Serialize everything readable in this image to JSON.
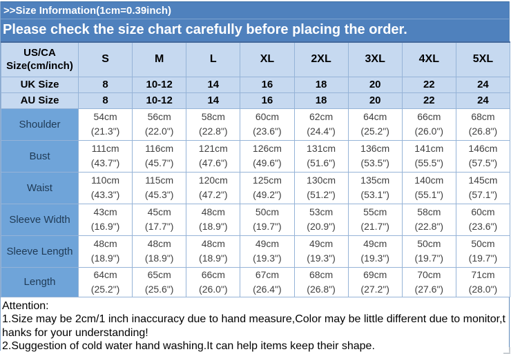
{
  "header": {
    "title": ">>Size Information(1cm=0.39inch)",
    "banner": "Please check the size chart carefully before placing the order."
  },
  "size_table": {
    "corner_header": {
      "line1": "US/CA",
      "line2": "Size(cm/inch)"
    },
    "size_headers": [
      "S",
      "M",
      "L",
      "XL",
      "2XL",
      "3XL",
      "4XL",
      "5XL"
    ],
    "uk_row": {
      "label": "UK Size",
      "values": [
        "8",
        "10-12",
        "14",
        "16",
        "18",
        "20",
        "22",
        "24"
      ]
    },
    "au_row": {
      "label": "AU Size",
      "values": [
        "8",
        "10-12",
        "14",
        "16",
        "18",
        "20",
        "22",
        "24"
      ]
    },
    "measurements": [
      {
        "label": "Shoulder",
        "cm": [
          "54cm",
          "56cm",
          "58cm",
          "60cm",
          "62cm",
          "64cm",
          "66cm",
          "68cm"
        ],
        "inch": [
          "(21.3\")",
          "(22.0\")",
          "(22.8\")",
          "(23.6\")",
          "(24.4\")",
          "(25.2\")",
          "(26.0\")",
          "(26.8\")"
        ]
      },
      {
        "label": "Bust",
        "cm": [
          "111cm",
          "116cm",
          "121cm",
          "126cm",
          "131cm",
          "136cm",
          "141cm",
          "146cm"
        ],
        "inch": [
          "(43.7\")",
          "(45.7\")",
          "(47.6\")",
          "(49.6\")",
          "(51.6\")",
          "(53.5\")",
          "(55.5\")",
          "(57.5\")"
        ]
      },
      {
        "label": "Waist",
        "cm": [
          "110cm",
          "115cm",
          "120cm",
          "125cm",
          "130cm",
          "135cm",
          "140cm",
          "145cm"
        ],
        "inch": [
          "(43.3\")",
          "(45.3\")",
          "(47.2\")",
          "(49.2\")",
          "(51.2\")",
          "(53.1\")",
          "(55.1\")",
          "(57.1\")"
        ]
      },
      {
        "label": "Sleeve Width",
        "cm": [
          "43cm",
          "45cm",
          "48cm",
          "50cm",
          "53cm",
          "55cm",
          "58cm",
          "60cm"
        ],
        "inch": [
          "(16.9\")",
          "(17.7\")",
          "(18.9\")",
          "(19.7\")",
          "(20.9\")",
          "(21.7\")",
          "(22.8\")",
          "(23.6\")"
        ]
      },
      {
        "label": "Sleeve Length",
        "cm": [
          "48cm",
          "48cm",
          "48cm",
          "49cm",
          "49cm",
          "49cm",
          "50cm",
          "50cm"
        ],
        "inch": [
          "(18.9\")",
          "(18.9\")",
          "(18.9\")",
          "(19.3\")",
          "(19.3\")",
          "(19.3\")",
          "(19.7\")",
          "(19.7\")"
        ]
      },
      {
        "label": "Length",
        "cm": [
          "64cm",
          "65cm",
          "66cm",
          "67cm",
          "68cm",
          "69cm",
          "70cm",
          "71cm"
        ],
        "inch": [
          "(25.2\")",
          "(25.6\")",
          "(26.0\")",
          "(26.4\")",
          "(26.8\")",
          "(27.2\")",
          "(27.6\")",
          "(28.0\")"
        ]
      }
    ]
  },
  "attention": {
    "title": "Attention:",
    "note1": "1.Size may be 2cm/1 inch inaccuracy due to hand measure,Color may be little different due to monitor,thanks for your understanding!",
    "note2": "2.Suggestion of cold water hand washing.It can help items keep their shape."
  },
  "colors": {
    "banner_blue": "#4f81bd",
    "header_light_blue": "#c6d9f0",
    "row_label_blue": "#6fa4d9",
    "table_border": "#95b3d7",
    "banner_text": "#ffffff",
    "data_text": "#3f3f3f"
  }
}
